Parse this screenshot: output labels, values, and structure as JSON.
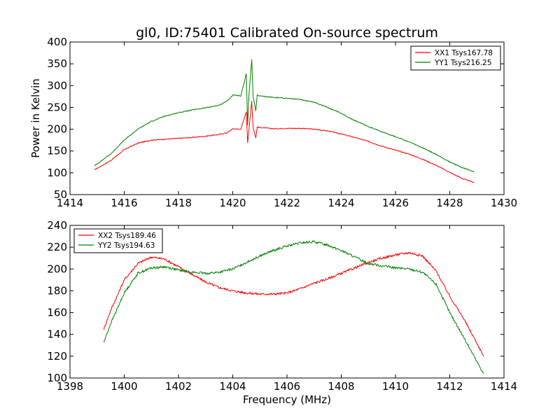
{
  "figure": {
    "title": "gl0, ID:75401 Calibrated On-source spectrum",
    "xlabel": "Frequency (MHz)",
    "top_ylabel": "Power in Kelvin"
  },
  "colors": {
    "red": "#ff0000",
    "green": "#008000",
    "axes": "#000000",
    "background": "#ffffff"
  },
  "chart_data": [
    {
      "type": "line",
      "xlabel": "",
      "ylabel": "Power in Kelvin",
      "xlim": [
        1414,
        1430
      ],
      "ylim": [
        50,
        400
      ],
      "xticks": [
        1414,
        1416,
        1418,
        1420,
        1422,
        1424,
        1426,
        1428,
        1430
      ],
      "yticks": [
        50,
        100,
        150,
        200,
        250,
        300,
        350,
        400
      ],
      "legend_position": "top-right",
      "grid": false,
      "series": [
        {
          "name": "XX1 Tsys167.78",
          "color": "#ff0000",
          "x": [
            1414.9,
            1415.5,
            1416.0,
            1416.5,
            1417.0,
            1417.5,
            1418.0,
            1418.5,
            1419.0,
            1419.5,
            1419.8,
            1420.0,
            1420.3,
            1420.5,
            1420.55,
            1420.6,
            1420.7,
            1420.75,
            1420.85,
            1420.9,
            1421.0,
            1421.5,
            1422.0,
            1422.5,
            1423.0,
            1423.5,
            1424.0,
            1424.5,
            1425.0,
            1425.5,
            1426.0,
            1426.5,
            1427.0,
            1427.5,
            1428.0,
            1428.5,
            1428.9
          ],
          "y": [
            107,
            128,
            153,
            168,
            175,
            177,
            179,
            181,
            184,
            188,
            192,
            201,
            200,
            240,
            170,
            200,
            265,
            205,
            180,
            205,
            204,
            201,
            202,
            202,
            200,
            196,
            189,
            181,
            172,
            161,
            152,
            143,
            131,
            117,
            101,
            86,
            78
          ]
        },
        {
          "name": "YY1 Tsys216.25",
          "color": "#008000",
          "x": [
            1414.9,
            1415.5,
            1416.0,
            1416.5,
            1417.0,
            1417.5,
            1418.0,
            1418.5,
            1419.0,
            1419.5,
            1419.8,
            1420.0,
            1420.3,
            1420.5,
            1420.55,
            1420.6,
            1420.7,
            1420.75,
            1420.85,
            1420.9,
            1421.0,
            1421.5,
            1422.0,
            1422.5,
            1423.0,
            1423.5,
            1424.0,
            1424.5,
            1425.0,
            1425.5,
            1426.0,
            1426.5,
            1427.0,
            1427.5,
            1428.0,
            1428.5,
            1428.9
          ],
          "y": [
            116,
            143,
            175,
            200,
            218,
            230,
            238,
            244,
            249,
            255,
            265,
            278,
            276,
            328,
            210,
            280,
            360,
            275,
            243,
            278,
            276,
            273,
            271,
            268,
            262,
            250,
            236,
            220,
            206,
            194,
            183,
            171,
            157,
            142,
            125,
            111,
            102
          ]
        }
      ]
    },
    {
      "type": "line",
      "xlabel": "Frequency (MHz)",
      "ylabel": "",
      "xlim": [
        1398,
        1414
      ],
      "ylim": [
        100,
        240
      ],
      "xticks": [
        1398,
        1400,
        1402,
        1404,
        1406,
        1408,
        1410,
        1412,
        1414
      ],
      "yticks": [
        100,
        120,
        140,
        160,
        180,
        200,
        220,
        240
      ],
      "legend_position": "top-left",
      "grid": false,
      "series": [
        {
          "name": "XX2 Tsys189.46",
          "color": "#ff0000",
          "x": [
            1399.25,
            1399.5,
            1400.0,
            1400.5,
            1401.0,
            1401.5,
            1402.0,
            1402.5,
            1403.0,
            1403.5,
            1404.0,
            1404.5,
            1405.0,
            1405.5,
            1406.0,
            1406.5,
            1407.0,
            1407.5,
            1408.0,
            1408.5,
            1409.0,
            1409.5,
            1410.0,
            1410.5,
            1411.0,
            1411.5,
            1412.0,
            1412.5,
            1413.0,
            1413.25
          ],
          "y": [
            145,
            162,
            190,
            205,
            211,
            209,
            202,
            195,
            188,
            183,
            180,
            178,
            177,
            177,
            178,
            182,
            187,
            191,
            196,
            201,
            206,
            210,
            213,
            215,
            212,
            198,
            175,
            155,
            132,
            120
          ]
        },
        {
          "name": "YY2 Tsys194.63",
          "color": "#008000",
          "x": [
            1399.25,
            1399.5,
            1400.0,
            1400.5,
            1401.0,
            1401.5,
            1402.0,
            1402.5,
            1403.0,
            1403.5,
            1404.0,
            1404.5,
            1405.0,
            1405.5,
            1406.0,
            1406.5,
            1407.0,
            1407.5,
            1408.0,
            1408.5,
            1409.0,
            1409.5,
            1410.0,
            1410.5,
            1411.0,
            1411.5,
            1412.0,
            1412.5,
            1413.0,
            1413.25
          ],
          "y": [
            133,
            150,
            178,
            196,
            201,
            202,
            199,
            197,
            196,
            197,
            200,
            206,
            212,
            217,
            221,
            224,
            225,
            222,
            217,
            211,
            205,
            203,
            201,
            200,
            197,
            186,
            160,
            138,
            115,
            104
          ]
        }
      ]
    }
  ]
}
